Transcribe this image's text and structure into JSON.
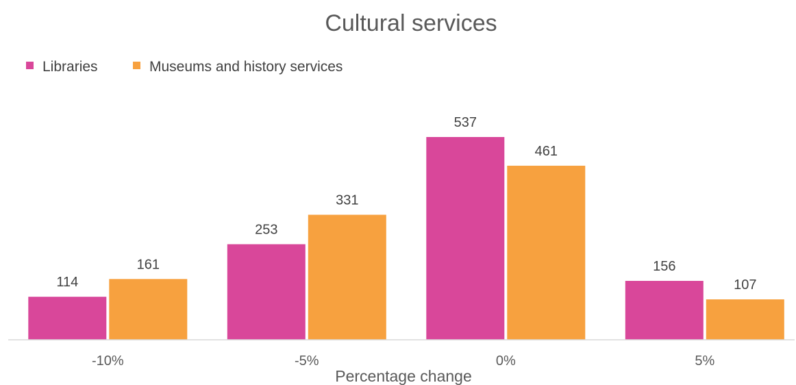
{
  "chart_data": {
    "type": "bar",
    "title": "Cultural services",
    "xlabel": "Percentage change",
    "ylabel": "",
    "categories": [
      "-10%",
      "-5%",
      "0%",
      "5%"
    ],
    "series": [
      {
        "name": "Libraries",
        "values": [
          114,
          253,
          537,
          156
        ],
        "color": "#d9479a"
      },
      {
        "name": "Museums and history services",
        "values": [
          161,
          331,
          461,
          107
        ],
        "color": "#f7a13f"
      }
    ],
    "ylim": [
      0,
      600
    ],
    "grid": false,
    "legend": "top-left"
  }
}
